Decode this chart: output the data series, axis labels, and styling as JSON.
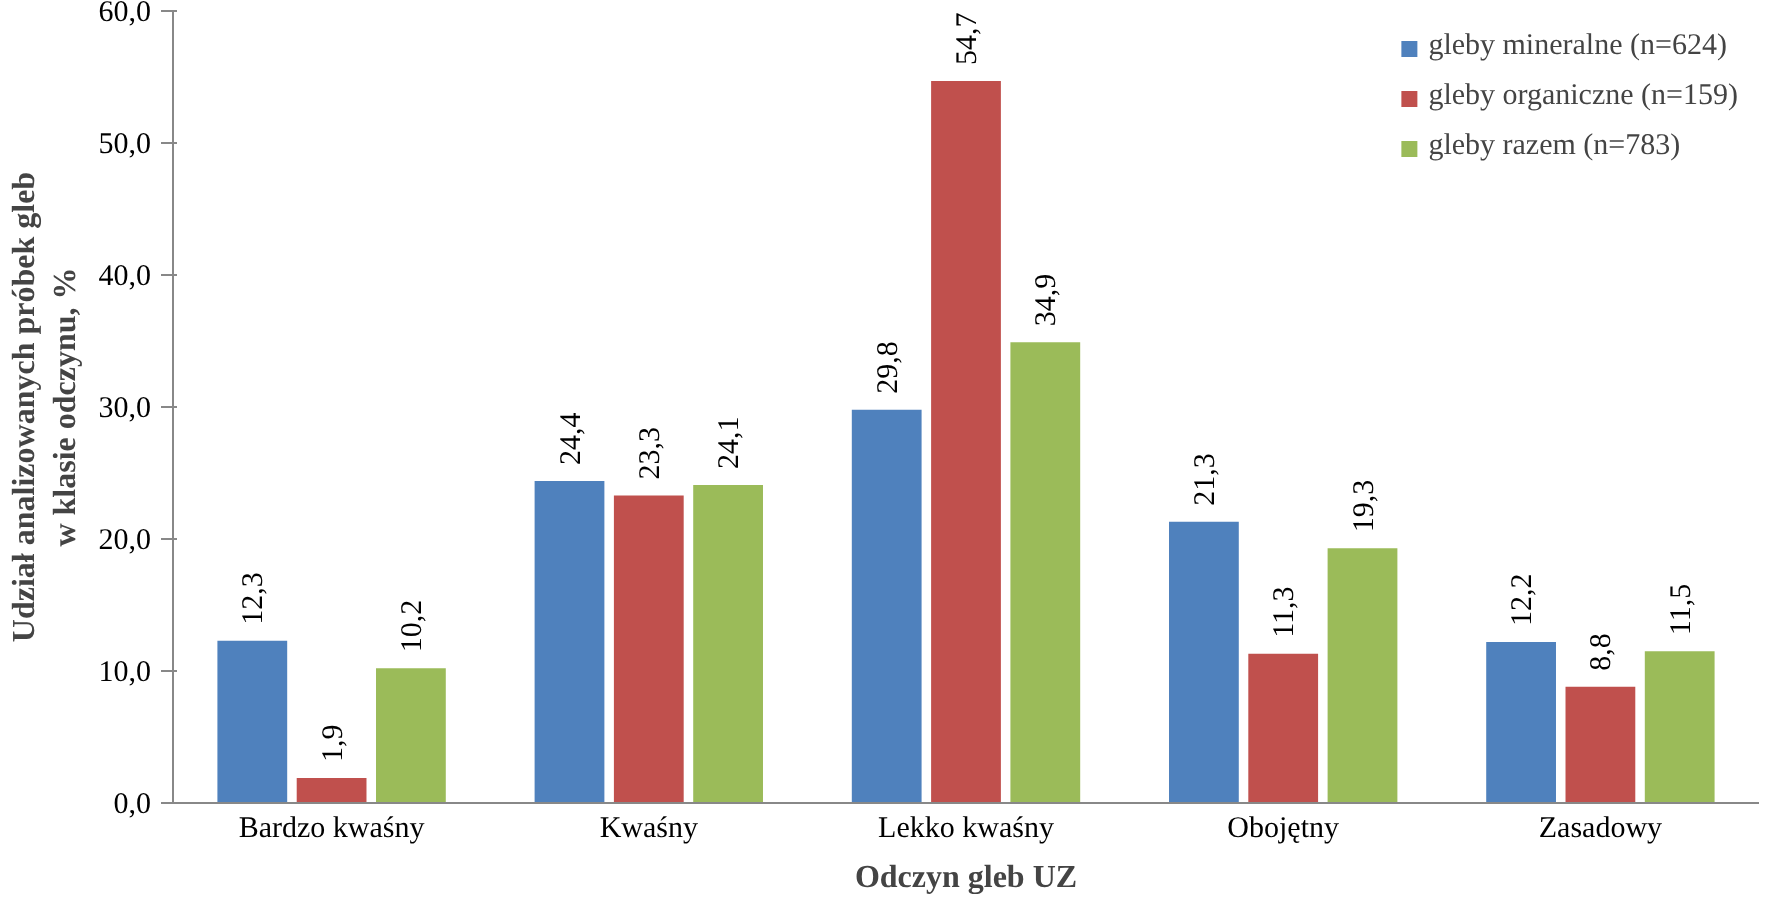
{
  "chart_data": {
    "type": "bar",
    "xlabel": "Odczyn gleb UZ",
    "ylabel": "Udział analizowanych próbek gleb w klasie odczynu, %",
    "categories": [
      "Bardzo kwaśny",
      "Kwaśny",
      "Lekko kwaśny",
      "Obojętny",
      "Zasadowy"
    ],
    "series": [
      {
        "name": "gleby mineralne (n=624)",
        "color": "#4f81bd",
        "values": [
          12.3,
          24.4,
          29.8,
          21.3,
          12.2
        ],
        "value_labels": [
          "12,3",
          "24,4",
          "29,8",
          "21,3",
          "12,2"
        ]
      },
      {
        "name": "gleby organiczne (n=159)",
        "color": "#c0504d",
        "values": [
          1.9,
          23.3,
          54.7,
          11.3,
          8.8
        ],
        "value_labels": [
          "1,9",
          "23,3",
          "54,7",
          "11,3",
          "8,8"
        ]
      },
      {
        "name": "gleby razem (n=783)",
        "color": "#9bbb59",
        "values": [
          10.2,
          24.1,
          34.9,
          19.3,
          11.5
        ],
        "value_labels": [
          "10,2",
          "24,1",
          "34,9",
          "19,3",
          "11,5"
        ]
      }
    ],
    "ylim": [
      0,
      60
    ],
    "yticks": [
      {
        "value": 0,
        "label": "0,0"
      },
      {
        "value": 10,
        "label": "10,0"
      },
      {
        "value": 20,
        "label": "20,0"
      },
      {
        "value": 30,
        "label": "30,0"
      },
      {
        "value": 40,
        "label": "40,0"
      },
      {
        "value": 50,
        "label": "50,0"
      },
      {
        "value": 60,
        "label": "60,0"
      }
    ],
    "legend": "top right",
    "grid": false
  }
}
